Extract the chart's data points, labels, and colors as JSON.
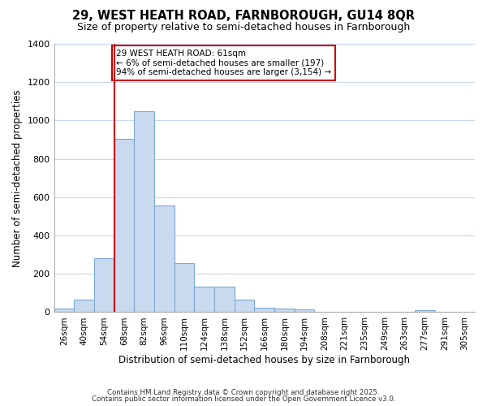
{
  "title_line1": "29, WEST HEATH ROAD, FARNBOROUGH, GU14 8QR",
  "title_line2": "Size of property relative to semi-detached houses in Farnborough",
  "xlabel": "Distribution of semi-detached houses by size in Farnborough",
  "ylabel": "Number of semi-detached properties",
  "categories": [
    "26sqm",
    "40sqm",
    "54sqm",
    "68sqm",
    "82sqm",
    "96sqm",
    "110sqm",
    "124sqm",
    "138sqm",
    "152sqm",
    "166sqm",
    "180sqm",
    "194sqm",
    "208sqm",
    "221sqm",
    "235sqm",
    "249sqm",
    "263sqm",
    "277sqm",
    "291sqm",
    "305sqm"
  ],
  "values": [
    20,
    65,
    280,
    905,
    1047,
    555,
    257,
    135,
    135,
    65,
    25,
    20,
    15,
    0,
    0,
    0,
    0,
    0,
    12,
    0,
    0
  ],
  "bar_color": "#c9d9f0",
  "bar_edge_color": "#7baad4",
  "red_line_x": 2.5,
  "annotation_title": "29 WEST HEATH ROAD: 61sqm",
  "annotation_line2": "← 6% of semi-detached houses are smaller (197)",
  "annotation_line3": "94% of semi-detached houses are larger (3,154) →",
  "annotation_box_color": "#ffffff",
  "annotation_box_edge": "#cc0000",
  "red_line_color": "#cc0000",
  "background_color": "#ffffff",
  "grid_color": "#c8d8f0",
  "ylim": [
    0,
    1400
  ],
  "yticks": [
    0,
    200,
    400,
    600,
    800,
    1000,
    1200,
    1400
  ],
  "footer_line1": "Contains HM Land Registry data © Crown copyright and database right 2025.",
  "footer_line2": "Contains public sector information licensed under the Open Government Licence v3.0."
}
